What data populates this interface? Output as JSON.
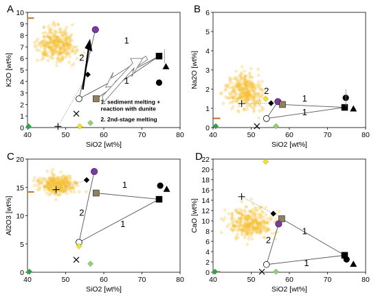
{
  "colors": {
    "cloud": "#f5c238",
    "purple": "#7a3b9a",
    "olive": "#8f8160",
    "yellow": "#f3e51a",
    "green_dark": "#2aa64a",
    "green_light": "#8ed36a",
    "orange_dash": "#c46a1c",
    "trend_line": "#555555",
    "dotted_line": "#999999"
  },
  "chart_data": [
    {
      "type": "scatter",
      "panel": "A",
      "xlabel": "SiO2 [wt%]",
      "ylabel": "K2O [wt%]",
      "xlim": [
        40,
        80
      ],
      "ylim": [
        0,
        10
      ],
      "xticks": [
        "40",
        "50",
        "60",
        "70",
        "80"
      ],
      "yticks": [
        "0",
        "1",
        "2",
        "3",
        "4",
        "5",
        "6",
        "7",
        "8",
        "9",
        "10"
      ],
      "cloud_center": [
        47.5,
        7.2
      ],
      "cloud_spread": [
        4.5,
        1.2
      ],
      "points": [
        {
          "symbol": "dash",
          "x": 40.8,
          "y": 9.5,
          "color": "orange_dash"
        },
        {
          "symbol": "circle",
          "x": 57.8,
          "y": 8.5,
          "color": "purple"
        },
        {
          "symbol": "diamond",
          "x": 55.8,
          "y": 4.6,
          "color": "black"
        },
        {
          "symbol": "circle_open",
          "x": 53.5,
          "y": 2.5,
          "color": "white"
        },
        {
          "symbol": "square",
          "x": 58.0,
          "y": 2.5,
          "color": "olive"
        },
        {
          "symbol": "x",
          "x": 52.8,
          "y": 1.2,
          "color": "black"
        },
        {
          "symbol": "plus",
          "x": 48.0,
          "y": 0.1,
          "color": "black"
        },
        {
          "symbol": "diamond",
          "x": 53.7,
          "y": 0.1,
          "color": "yellow"
        },
        {
          "symbol": "diamond",
          "x": 56.5,
          "y": 0.4,
          "color": "green_light"
        },
        {
          "symbol": "diamond",
          "x": 40.3,
          "y": 0.1,
          "color": "green_dark"
        },
        {
          "symbol": "square",
          "x": 74.5,
          "y": 6.2,
          "color": "black"
        },
        {
          "symbol": "triangle",
          "x": 76.3,
          "y": 5.3,
          "color": "black"
        },
        {
          "symbol": "circle",
          "x": 74.5,
          "y": 3.9,
          "color": "black"
        }
      ],
      "annotations": [
        "1",
        "1",
        "2"
      ],
      "note_lines": [
        "1. sediment melting +",
        "reaction with dunite",
        "2. 2nd-stage melting"
      ]
    },
    {
      "type": "scatter",
      "panel": "B",
      "xlabel": "SiO2 [wt%]",
      "ylabel": "Na2O [wt%]",
      "xlim": [
        40,
        80
      ],
      "ylim": [
        0,
        6
      ],
      "xticks": [
        "40",
        "50",
        "60",
        "70",
        "80"
      ],
      "yticks": [
        "0",
        "1",
        "2",
        "3",
        "4",
        "5",
        "6"
      ],
      "cloud_center": [
        48.5,
        1.9
      ],
      "cloud_spread": [
        4.0,
        0.75
      ],
      "points": [
        {
          "symbol": "dash",
          "x": 41.0,
          "y": 0.48,
          "color": "orange_dash"
        },
        {
          "symbol": "plus",
          "x": 47.5,
          "y": 1.25,
          "color": "black"
        },
        {
          "symbol": "diamond",
          "x": 53.8,
          "y": 1.5,
          "color": "yellow"
        },
        {
          "symbol": "diamond",
          "x": 55.2,
          "y": 1.27,
          "color": "black"
        },
        {
          "symbol": "circle",
          "x": 57.0,
          "y": 1.35,
          "color": "purple"
        },
        {
          "symbol": "square",
          "x": 58.2,
          "y": 1.2,
          "color": "olive"
        },
        {
          "symbol": "circle_open",
          "x": 54.0,
          "y": 0.47,
          "color": "white"
        },
        {
          "symbol": "x",
          "x": 51.5,
          "y": 0.07,
          "color": "black"
        },
        {
          "symbol": "diamond",
          "x": 40.7,
          "y": 0.07,
          "color": "green_dark"
        },
        {
          "symbol": "diamond",
          "x": 56.5,
          "y": 0.07,
          "color": "green_light"
        },
        {
          "symbol": "circle",
          "x": 74.8,
          "y": 1.55,
          "color": "black"
        },
        {
          "symbol": "square",
          "x": 74.5,
          "y": 1.05,
          "color": "black"
        },
        {
          "symbol": "triangle",
          "x": 76.8,
          "y": 0.98,
          "color": "black"
        }
      ],
      "annotations": [
        "2",
        "1",
        "1"
      ]
    },
    {
      "type": "scatter",
      "panel": "C",
      "xlabel": "SiO2 [wt%]",
      "ylabel": "Al2O3 [wt%]",
      "xlim": [
        40,
        80
      ],
      "ylim": [
        0,
        20
      ],
      "xticks": [
        "40",
        "50",
        "60",
        "70",
        "80"
      ],
      "yticks": [
        "0",
        "5",
        "10",
        "15",
        "20"
      ],
      "cloud_center": [
        48.0,
        15.5
      ],
      "cloud_spread": [
        4.0,
        1.5
      ],
      "points": [
        {
          "symbol": "dash",
          "x": 40.8,
          "y": 14.2,
          "color": "orange_dash"
        },
        {
          "symbol": "plus",
          "x": 47.5,
          "y": 14.6,
          "color": "black"
        },
        {
          "symbol": "circle",
          "x": 57.5,
          "y": 17.8,
          "color": "purple"
        },
        {
          "symbol": "diamond",
          "x": 55.5,
          "y": 16.3,
          "color": "black"
        },
        {
          "symbol": "square",
          "x": 58.0,
          "y": 14.0,
          "color": "olive"
        },
        {
          "symbol": "circle_open",
          "x": 53.5,
          "y": 5.3,
          "color": "white"
        },
        {
          "symbol": "diamond",
          "x": 53.5,
          "y": 4.6,
          "color": "yellow"
        },
        {
          "symbol": "x",
          "x": 52.8,
          "y": 2.2,
          "color": "black"
        },
        {
          "symbol": "diamond",
          "x": 56.5,
          "y": 1.5,
          "color": "green_light"
        },
        {
          "symbol": "diamond",
          "x": 40.5,
          "y": 0.1,
          "color": "green_dark"
        },
        {
          "symbol": "circle",
          "x": 74.8,
          "y": 15.3,
          "color": "black"
        },
        {
          "symbol": "triangle",
          "x": 76.5,
          "y": 14.7,
          "color": "black"
        },
        {
          "symbol": "square",
          "x": 74.5,
          "y": 12.9,
          "color": "black"
        }
      ],
      "annotations": [
        "1",
        "1",
        "2"
      ]
    },
    {
      "type": "scatter",
      "panel": "D",
      "xlabel": "SiO2 [wt%]",
      "ylabel": "CaO [wt%]",
      "xlim": [
        40,
        80
      ],
      "ylim": [
        0,
        22
      ],
      "xticks": [
        "40",
        "50",
        "60",
        "70",
        "80"
      ],
      "yticks": [
        "0",
        "2",
        "4",
        "6",
        "8",
        "10",
        "12",
        "14",
        "16",
        "18",
        "20",
        "22"
      ],
      "cloud_center": [
        50.0,
        9.5
      ],
      "cloud_spread": [
        5.0,
        2.5
      ],
      "points": [
        {
          "symbol": "diamond",
          "x": 53.8,
          "y": 21.5,
          "color": "yellow"
        },
        {
          "symbol": "plus",
          "x": 47.5,
          "y": 14.7,
          "color": "black"
        },
        {
          "symbol": "diamond",
          "x": 55.8,
          "y": 11.4,
          "color": "black"
        },
        {
          "symbol": "square",
          "x": 58.0,
          "y": 10.4,
          "color": "olive"
        },
        {
          "symbol": "circle",
          "x": 57.2,
          "y": 9.4,
          "color": "purple"
        },
        {
          "symbol": "circle_open",
          "x": 54.0,
          "y": 1.5,
          "color": "white"
        },
        {
          "symbol": "x",
          "x": 52.8,
          "y": 0.1,
          "color": "black"
        },
        {
          "symbol": "dash",
          "x": 41.0,
          "y": 0.1,
          "color": "orange_dash"
        },
        {
          "symbol": "diamond",
          "x": 40.5,
          "y": 0.1,
          "color": "green_dark"
        },
        {
          "symbol": "diamond",
          "x": 56.5,
          "y": 0.1,
          "color": "green_light"
        },
        {
          "symbol": "square",
          "x": 74.5,
          "y": 3.3,
          "color": "black"
        },
        {
          "symbol": "circle",
          "x": 75.0,
          "y": 2.5,
          "color": "black"
        },
        {
          "symbol": "triangle",
          "x": 76.8,
          "y": 1.6,
          "color": "black"
        }
      ],
      "annotations": [
        "1",
        "2",
        "1"
      ]
    }
  ]
}
